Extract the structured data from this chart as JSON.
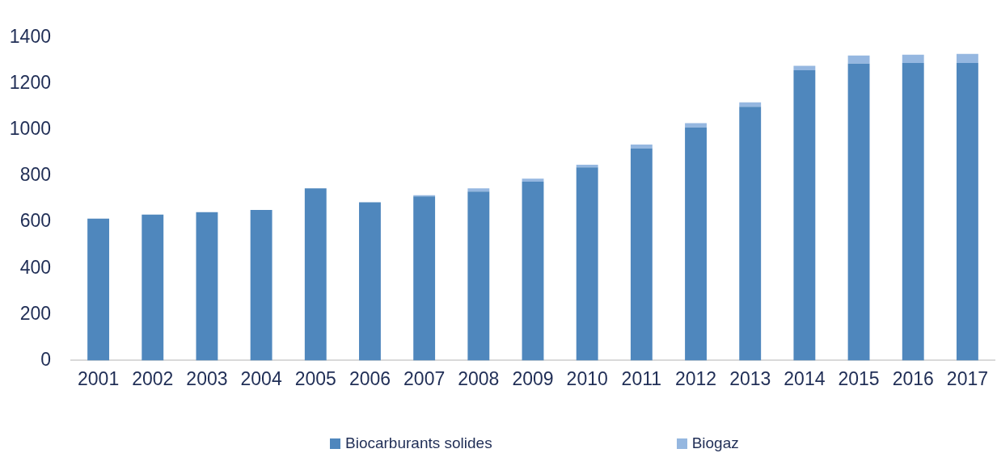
{
  "chart_data": {
    "type": "bar",
    "stacked": true,
    "legend": "bottom",
    "categories": [
      "2001",
      "2002",
      "2003",
      "2004",
      "2005",
      "2006",
      "2007",
      "2008",
      "2009",
      "2010",
      "2011",
      "2012",
      "2013",
      "2014",
      "2015",
      "2016",
      "2017"
    ],
    "series": [
      {
        "name": "Biocarburants solides",
        "color": "#4f87bd",
        "values": [
          615,
          633,
          643,
          653,
          747,
          686,
          712,
          733,
          776,
          838,
          920,
          1011,
          1101,
          1259,
          1288,
          1291,
          1291
        ]
      },
      {
        "name": "Biogaz",
        "color": "#95b7e0",
        "values": [
          0,
          0,
          0,
          0,
          0,
          0,
          5,
          14,
          13,
          11,
          17,
          19,
          19,
          19,
          35,
          36,
          39
        ]
      }
    ],
    "ylim": [
      0,
      1400
    ],
    "yticks": [
      0,
      200,
      400,
      600,
      800,
      1000,
      1200,
      1400
    ]
  }
}
